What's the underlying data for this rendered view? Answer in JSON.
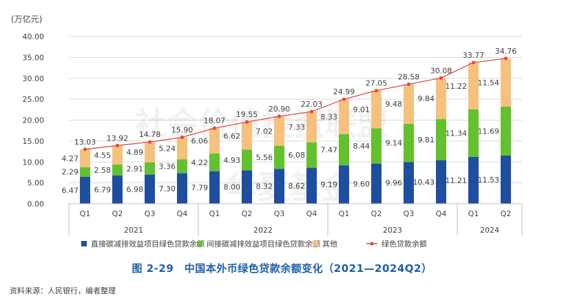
{
  "chart_data": {
    "type": "bar",
    "unit_label": "(万亿元)",
    "y_ticks": [
      "0.00",
      "5.00",
      "10.00",
      "15.00",
      "20.00",
      "25.00",
      "30.00",
      "35.00",
      "40.00"
    ],
    "ylim": [
      0,
      40
    ],
    "categories": [
      "Q1",
      "Q2",
      "Q3",
      "Q4",
      "Q1",
      "Q2",
      "Q3",
      "Q4",
      "Q1",
      "Q2",
      "Q3",
      "Q4",
      "Q1",
      "Q2"
    ],
    "years": [
      {
        "label": "2021",
        "count": 4
      },
      {
        "label": "2022",
        "count": 4
      },
      {
        "label": "2023",
        "count": 4
      },
      {
        "label": "2024",
        "count": 2
      }
    ],
    "series": [
      {
        "name": "直接碳减排效益项目绿色贷款余额",
        "type": "bar",
        "color": "#1f4e9e",
        "values": [
          6.47,
          6.79,
          6.98,
          7.3,
          7.79,
          8.0,
          8.32,
          8.62,
          9.19,
          9.6,
          9.96,
          10.43,
          11.21,
          11.53
        ],
        "labels": [
          "6.47",
          "6.79",
          "6.98",
          "7.30",
          "7.79",
          "8.00",
          "8.32",
          "8.62",
          "9.19",
          "9.60",
          "9.96",
          "10.43",
          "11.21",
          "11.53"
        ]
      },
      {
        "name": "间接碳减排效益项目绿色贷款余额",
        "type": "bar",
        "color": "#62c12e",
        "values": [
          2.29,
          2.58,
          2.91,
          3.36,
          4.22,
          4.93,
          5.56,
          6.08,
          7.47,
          8.44,
          9.14,
          9.81,
          11.34,
          11.69
        ],
        "labels": [
          "2.29",
          "2.58",
          "2.91",
          "3.36",
          "4.22",
          "4.93",
          "5.56",
          "6.08",
          "7.47",
          "8.44",
          "9.14",
          "9.81",
          "11.34",
          "11.69"
        ]
      },
      {
        "name": "其他",
        "type": "bar",
        "color": "#f5c27e",
        "values": [
          4.27,
          4.55,
          4.89,
          5.24,
          6.06,
          6.62,
          7.02,
          7.33,
          8.33,
          9.01,
          9.48,
          9.84,
          11.22,
          11.54
        ],
        "labels": [
          "4.27",
          "4.55",
          "4.89",
          "5.24",
          "6.06",
          "6.62",
          "7.02",
          "7.33",
          "8.33",
          "9.01",
          "9.48",
          "9.84",
          "11.22",
          "11.54"
        ]
      },
      {
        "name": "绿色贷款余额",
        "type": "line",
        "color": "#e04a4a",
        "values": [
          13.03,
          13.92,
          14.78,
          15.9,
          18.07,
          19.55,
          20.9,
          22.03,
          24.99,
          27.05,
          28.58,
          30.08,
          33.77,
          34.76
        ],
        "labels": [
          "13.03",
          "13.92",
          "14.78",
          "15.90",
          "18.07",
          "19.55",
          "20.90",
          "22.03",
          "24.99",
          "27.05",
          "28.58",
          "30.08",
          "33.77",
          "34.76"
        ]
      }
    ],
    "legend": "bottom",
    "grid": true
  },
  "watermark": {
    "line1": "社会价值投资联盟",
    "line2": "华夏基金"
  },
  "caption": "图 2-29　中国本外币绿色贷款余额变化（2021—2024Q2）",
  "source": "资料来源：人民银行，编者整理"
}
